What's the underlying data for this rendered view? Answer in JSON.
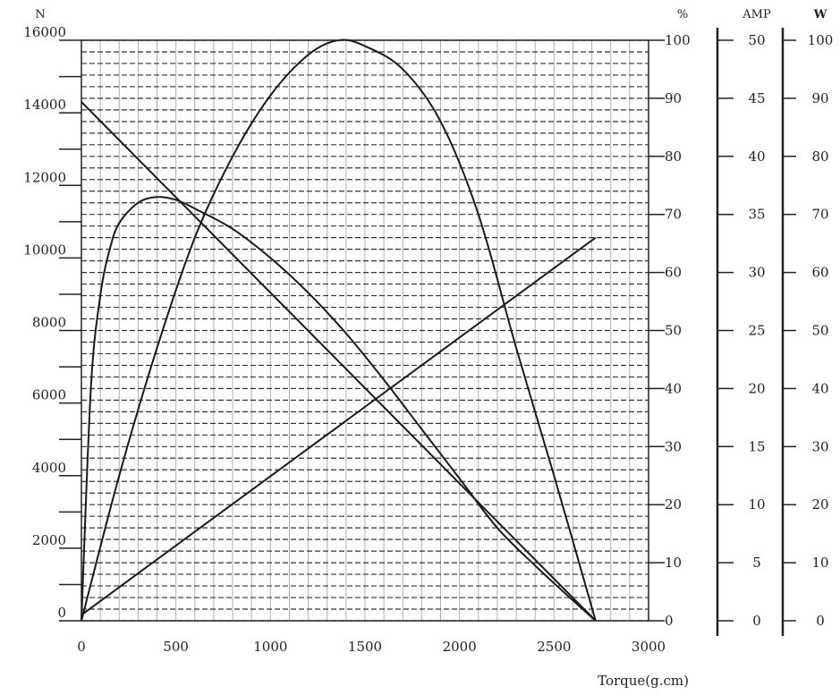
{
  "chart_data": {
    "type": "line",
    "title": "",
    "xlabel": "Torque(g.cm)",
    "x_ticks": [
      "0",
      "500",
      "1000",
      "1500",
      "2000",
      "2500",
      "3000"
    ],
    "xlim": [
      0,
      3000
    ],
    "axes": {
      "speed": {
        "unit": "N",
        "lim": [
          0,
          16000
        ],
        "ticks": [
          "0",
          "2000",
          "4000",
          "6000",
          "8000",
          "10000",
          "12000",
          "14000",
          "16000"
        ]
      },
      "efficiency": {
        "unit": "%",
        "lim": [
          0,
          100
        ],
        "ticks": [
          "0",
          "10",
          "20",
          "30",
          "40",
          "50",
          "60",
          "70",
          "80",
          "90",
          "100"
        ]
      },
      "current": {
        "unit": "AMP",
        "lim": [
          0,
          50
        ],
        "ticks": [
          "0",
          "5",
          "10",
          "15",
          "20",
          "25",
          "30",
          "35",
          "40",
          "45",
          "50"
        ]
      },
      "power": {
        "unit": "W",
        "lim": [
          0,
          100
        ],
        "ticks": [
          "0",
          "10",
          "20",
          "30",
          "40",
          "50",
          "60",
          "70",
          "80",
          "90",
          "100"
        ]
      }
    },
    "grid": true,
    "series": [
      {
        "axis": "speed",
        "points": [
          [
            0,
            14300
          ],
          [
            2720,
            0
          ]
        ]
      },
      {
        "axis": "current",
        "points": [
          [
            0,
            0.5
          ],
          [
            2720,
            33
          ]
        ]
      },
      {
        "axis": "efficiency",
        "points": [
          [
            0,
            0
          ],
          [
            50,
            40
          ],
          [
            100,
            56
          ],
          [
            150,
            64
          ],
          [
            200,
            68.5
          ],
          [
            300,
            72
          ],
          [
            400,
            73
          ],
          [
            500,
            72.5
          ],
          [
            600,
            71
          ],
          [
            800,
            67.5
          ],
          [
            1000,
            62.5
          ],
          [
            1200,
            56.5
          ],
          [
            1400,
            49.5
          ],
          [
            1600,
            41.5
          ],
          [
            1800,
            33
          ],
          [
            2000,
            24.5
          ],
          [
            2200,
            16
          ],
          [
            2400,
            9.5
          ],
          [
            2600,
            3.5
          ],
          [
            2720,
            0
          ]
        ]
      },
      {
        "axis": "power",
        "points": [
          [
            0,
            0
          ],
          [
            200,
            25
          ],
          [
            400,
            47
          ],
          [
            600,
            66
          ],
          [
            800,
            80
          ],
          [
            1000,
            90.5
          ],
          [
            1200,
            97.5
          ],
          [
            1360,
            100
          ],
          [
            1500,
            99
          ],
          [
            1700,
            95
          ],
          [
            1900,
            86
          ],
          [
            2100,
            70
          ],
          [
            2300,
            47
          ],
          [
            2500,
            25
          ],
          [
            2720,
            0
          ]
        ]
      }
    ]
  }
}
